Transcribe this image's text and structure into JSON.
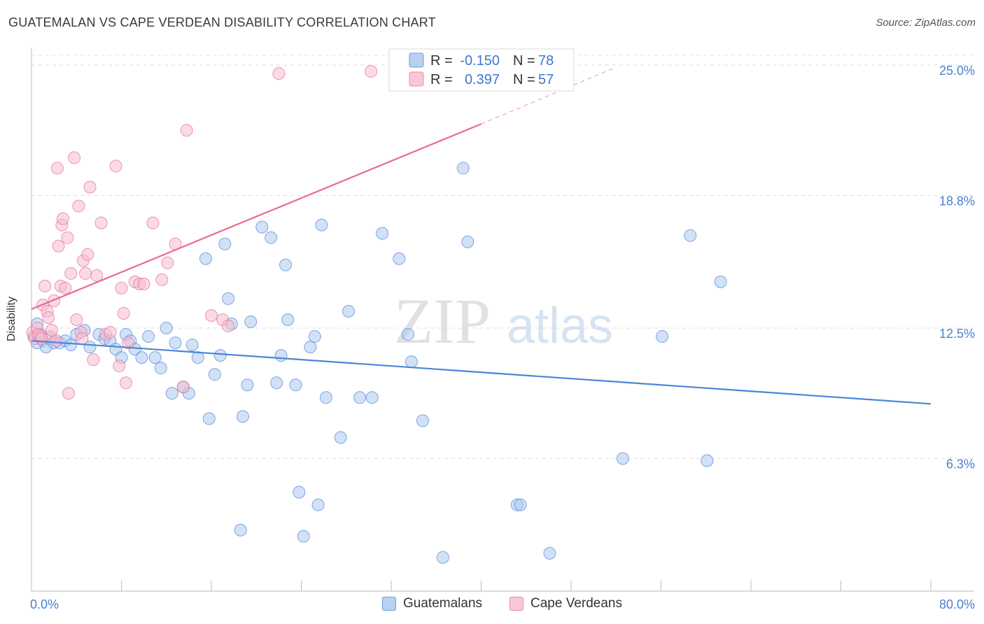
{
  "title": "GUATEMALAN VS CAPE VERDEAN DISABILITY CORRELATION CHART",
  "source": "Source: ZipAtlas.com",
  "watermark": {
    "zip": "ZIP",
    "atlas": "atlas"
  },
  "chart_data": {
    "type": "scatter",
    "ylabel": "Disability",
    "xlim": [
      0,
      80
    ],
    "ylim": [
      0,
      25.6
    ],
    "x_tick_labels": [
      "0.0%",
      "80.0%"
    ],
    "y_ticks": [
      6.3,
      12.5,
      18.8,
      25.0
    ],
    "y_tick_labels": [
      "6.3%",
      "12.5%",
      "18.8%",
      "25.0%"
    ],
    "legend": {
      "rows": [
        {
          "r_label": "R =",
          "r_value": "-0.150",
          "n_label": "N =",
          "n_value": "78"
        },
        {
          "r_label": "R =",
          "r_value": "0.397",
          "n_label": "N =",
          "n_value": "57"
        }
      ]
    },
    "series": [
      {
        "name": "Guatemalans",
        "color": "#4a86d8",
        "fill": "#aec9ee",
        "trend": {
          "x0": 0,
          "y0": 11.9,
          "x1": 80,
          "y1": 8.9
        },
        "points": [
          [
            0.2,
            12.1
          ],
          [
            0.5,
            12.7
          ],
          [
            0.8,
            12.2
          ],
          [
            1,
            11.9
          ],
          [
            1.3,
            11.6
          ],
          [
            1.6,
            12.0
          ],
          [
            2,
            11.8
          ],
          [
            2.5,
            11.8
          ],
          [
            3,
            11.9
          ],
          [
            3.5,
            11.7
          ],
          [
            4,
            12.2
          ],
          [
            4.7,
            12.4
          ],
          [
            5.2,
            11.6
          ],
          [
            6,
            12.2
          ],
          [
            6.5,
            12.0
          ],
          [
            7,
            11.9
          ],
          [
            7.5,
            11.5
          ],
          [
            8,
            11.1
          ],
          [
            8.4,
            12.2
          ],
          [
            8.8,
            11.9
          ],
          [
            9.2,
            11.5
          ],
          [
            9.8,
            11.1
          ],
          [
            10.4,
            12.1
          ],
          [
            11,
            11.1
          ],
          [
            11.5,
            10.6
          ],
          [
            12,
            12.5
          ],
          [
            12.5,
            9.4
          ],
          [
            12.8,
            11.8
          ],
          [
            13.5,
            9.7
          ],
          [
            14,
            9.4
          ],
          [
            14.3,
            11.7
          ],
          [
            14.8,
            11.1
          ],
          [
            15.5,
            15.8
          ],
          [
            15.8,
            8.2
          ],
          [
            16.3,
            10.3
          ],
          [
            16.8,
            11.2
          ],
          [
            17.2,
            16.5
          ],
          [
            17.5,
            13.9
          ],
          [
            17.8,
            12.7
          ],
          [
            18.6,
            2.9
          ],
          [
            18.8,
            8.3
          ],
          [
            19.2,
            9.8
          ],
          [
            19.5,
            12.8
          ],
          [
            20.5,
            17.3
          ],
          [
            21.3,
            16.8
          ],
          [
            21.8,
            9.9
          ],
          [
            22.2,
            11.2
          ],
          [
            22.6,
            15.5
          ],
          [
            22.8,
            12.9
          ],
          [
            23.5,
            9.8
          ],
          [
            23.8,
            4.7
          ],
          [
            24.2,
            2.6
          ],
          [
            24.8,
            11.6
          ],
          [
            25.2,
            12.1
          ],
          [
            25.5,
            4.1
          ],
          [
            25.8,
            17.4
          ],
          [
            26.2,
            9.2
          ],
          [
            27.5,
            7.3
          ],
          [
            28.2,
            13.3
          ],
          [
            29.2,
            9.2
          ],
          [
            30.3,
            9.2
          ],
          [
            31.2,
            17.0
          ],
          [
            32.7,
            15.8
          ],
          [
            33.5,
            12.2
          ],
          [
            33.8,
            10.9
          ],
          [
            34.8,
            8.1
          ],
          [
            36.6,
            1.6
          ],
          [
            38.4,
            20.1
          ],
          [
            38.8,
            16.6
          ],
          [
            43.2,
            4.1
          ],
          [
            43.5,
            4.1
          ],
          [
            46.1,
            1.8
          ],
          [
            52.6,
            6.3
          ],
          [
            56.1,
            12.1
          ],
          [
            58.6,
            16.9
          ],
          [
            60.1,
            6.2
          ],
          [
            61.3,
            14.7
          ],
          [
            0.5,
            11.8
          ]
        ]
      },
      {
        "name": "Cape Verdeans",
        "color": "#e86a94",
        "fill": "#f6bdd0",
        "trend": {
          "x0": 0,
          "y0": 13.4,
          "x1": 40,
          "y1": 22.2,
          "dash_x1": 52,
          "dash_y1": 24.9
        },
        "points": [
          [
            0.1,
            12.3
          ],
          [
            0.3,
            12.0
          ],
          [
            0.5,
            12.5
          ],
          [
            0.6,
            12.2
          ],
          [
            0.8,
            12.1
          ],
          [
            1,
            13.6
          ],
          [
            1.2,
            14.5
          ],
          [
            1.4,
            13.3
          ],
          [
            1.5,
            13.0
          ],
          [
            1.7,
            12.1
          ],
          [
            2,
            13.8
          ],
          [
            2.2,
            11.9
          ],
          [
            2.3,
            20.1
          ],
          [
            2.4,
            16.4
          ],
          [
            2.6,
            14.5
          ],
          [
            2.7,
            17.4
          ],
          [
            2.8,
            17.7
          ],
          [
            3,
            14.4
          ],
          [
            3.2,
            16.8
          ],
          [
            3.3,
            9.4
          ],
          [
            3.5,
            15.1
          ],
          [
            3.8,
            20.6
          ],
          [
            4,
            12.9
          ],
          [
            4.2,
            18.3
          ],
          [
            4.4,
            12.3
          ],
          [
            4.6,
            15.7
          ],
          [
            4.8,
            15.1
          ],
          [
            5,
            16.0
          ],
          [
            5.2,
            19.2
          ],
          [
            5.5,
            11.0
          ],
          [
            5.8,
            15.0
          ],
          [
            6.2,
            17.5
          ],
          [
            6.6,
            12.2
          ],
          [
            7,
            12.3
          ],
          [
            7.5,
            20.2
          ],
          [
            7.8,
            10.7
          ],
          [
            8,
            14.4
          ],
          [
            8.2,
            13.2
          ],
          [
            8.4,
            9.9
          ],
          [
            8.6,
            11.8
          ],
          [
            9.2,
            14.7
          ],
          [
            9.6,
            14.6
          ],
          [
            10,
            14.6
          ],
          [
            10.8,
            17.5
          ],
          [
            11.6,
            14.8
          ],
          [
            12.1,
            15.6
          ],
          [
            12.8,
            16.5
          ],
          [
            13.5,
            9.7
          ],
          [
            13.8,
            21.9
          ],
          [
            16,
            13.1
          ],
          [
            17,
            12.9
          ],
          [
            17.5,
            12.6
          ],
          [
            22,
            24.6
          ],
          [
            30.2,
            24.7
          ],
          [
            0.9,
            12.0
          ],
          [
            1.8,
            12.4
          ],
          [
            4.5,
            12.0
          ]
        ]
      }
    ]
  }
}
